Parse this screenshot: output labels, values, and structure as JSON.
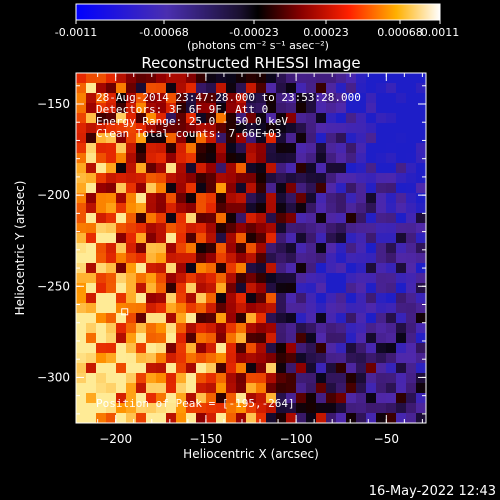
{
  "colorbar": {
    "tick_labels": [
      "-0.0011",
      "-0.00068",
      "-0.00023",
      "0.00023",
      "0.00068",
      "0.0011"
    ],
    "unit_label": "(photons cm⁻² s⁻¹ asec⁻²)",
    "range": [
      -0.0011,
      0.0011
    ]
  },
  "chart_data": {
    "type": "heatmap",
    "title": "Reconstructed RHESSI Image",
    "xlabel": "Heliocentric X (arcsec)",
    "ylabel": "Heliocentric Y (arcsec)",
    "xlim": [
      -222,
      -28
    ],
    "ylim": [
      -325,
      -133
    ],
    "xticks": [
      -200,
      -150,
      -100,
      -50
    ],
    "yticks": [
      -150,
      -200,
      -250,
      -300
    ],
    "xtick_labels": [
      "−200",
      "−150",
      "−100",
      "−50"
    ],
    "ytick_labels": [
      "−150",
      "−200",
      "−250",
      "−300"
    ],
    "annotations": [
      "28-Aug-2014 23:47:28.000 to 23:53:28.000",
      "Detectors: 3F 6F 9F, Att 0",
      "Energy Range: 25.0 - 50.0 keV",
      "Clean    Total counts: 7.66E+03"
    ],
    "peak_label": "Position of Peak = [-195,-264]",
    "peak": [
      -195,
      -264
    ]
  },
  "timestamp": "16-May-2022 12:43"
}
